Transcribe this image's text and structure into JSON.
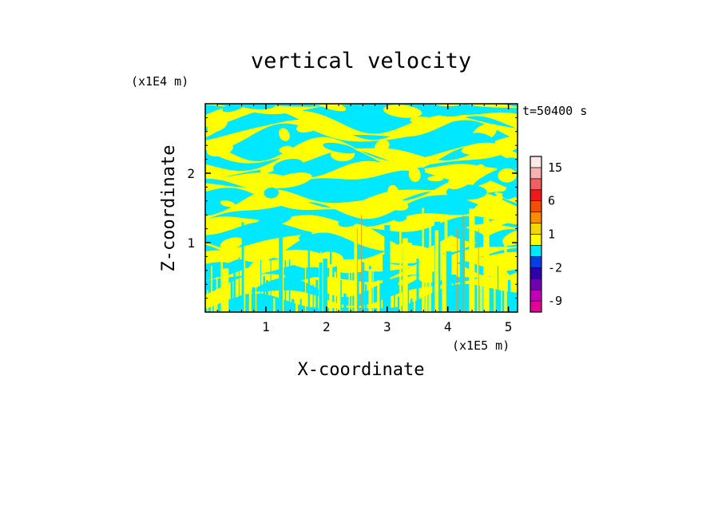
{
  "chart_data": {
    "type": "heatmap",
    "title": "vertical velocity",
    "xlabel": "X-coordinate",
    "ylabel": "Z-coordinate",
    "x_scale_note": "(x1E5 m)",
    "y_scale_note": "(x1E4 m)",
    "time_label": "t=50400 s",
    "xlim": [
      0,
      5.15
    ],
    "ylim": [
      0,
      3.0
    ],
    "x_ticks": [
      "1",
      "2",
      "3",
      "4",
      "5"
    ],
    "y_ticks": [
      "1",
      "2"
    ],
    "x_tick_values": [
      1,
      2,
      3,
      4,
      5
    ],
    "y_tick_values": [
      1,
      2
    ],
    "pattern": "alternating positive (yellow) and negative (cyan) tilted wave bands, near-vertical streaks below z=1.5",
    "colorbar": {
      "labels": [
        "15",
        "6",
        "1",
        "-2",
        "-9"
      ],
      "label_values": [
        15,
        6,
        1,
        -2,
        -9
      ],
      "levels": [
        -12,
        -9,
        -6,
        -4,
        -2,
        -1,
        0,
        1,
        2,
        4,
        6,
        9,
        12,
        15,
        20
      ],
      "colors": [
        "#e4009a",
        "#c000b8",
        "#7000b0",
        "#3000a8",
        "#0040e0",
        "#00e8ff",
        "#ffff00",
        "#f0d800",
        "#ff8c00",
        "#f05000",
        "#f01818",
        "#f06060",
        "#f8b0b0",
        "#fde8e8"
      ]
    },
    "field_colors": {
      "positive": "#ffff00",
      "negative": "#00e8ff",
      "streak": "#ff8c00"
    }
  }
}
